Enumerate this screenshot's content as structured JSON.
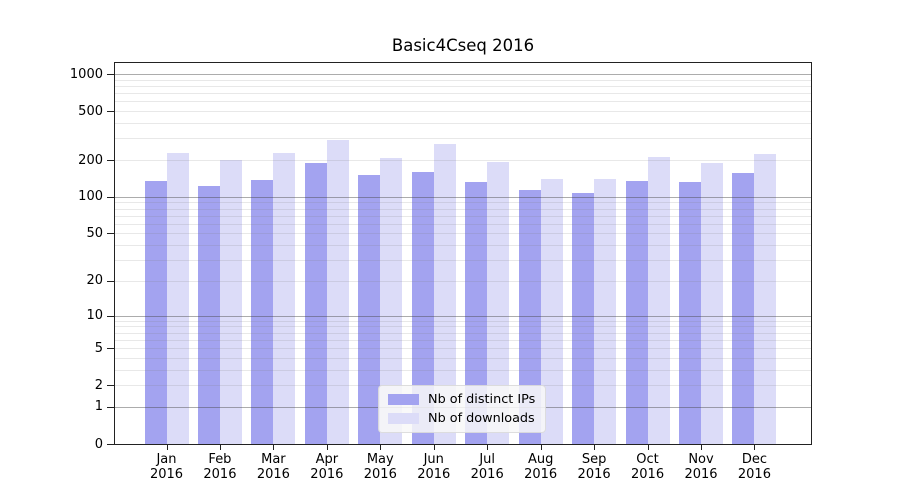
{
  "title": "Basic4Cseq 2016",
  "chart_data": {
    "type": "bar",
    "title": "Basic4Cseq 2016",
    "categories": [
      "Jan",
      "Feb",
      "Mar",
      "Apr",
      "May",
      "Jun",
      "Jul",
      "Aug",
      "Sep",
      "Oct",
      "Nov",
      "Dec"
    ],
    "x_year_label": "2016",
    "series": [
      {
        "name": "Nb of distinct IPs",
        "color": "#a3a3f0",
        "values": [
          135,
          123,
          137,
          189,
          151,
          160,
          133,
          114,
          108,
          136,
          133,
          158
        ]
      },
      {
        "name": "Nb of downloads",
        "color": "#dcdcf8",
        "values": [
          228,
          201,
          229,
          291,
          206,
          271,
          192,
          140,
          141,
          211,
          188,
          223
        ]
      }
    ],
    "y_ticks": [
      0,
      1,
      2,
      5,
      10,
      20,
      50,
      100,
      200,
      500,
      1000
    ],
    "y_scale": "log1p",
    "y_top_value": 1230,
    "ylim": [
      0,
      1230
    ],
    "xlabel": "",
    "ylabel": "",
    "grid": true,
    "grid_above_bars": true,
    "legend_position": "lower center",
    "colors": {
      "major_gridline": "#b0b0b0",
      "minor_gridline": "#e8e8e8",
      "spine": "#222222",
      "background": "#ffffff"
    }
  }
}
